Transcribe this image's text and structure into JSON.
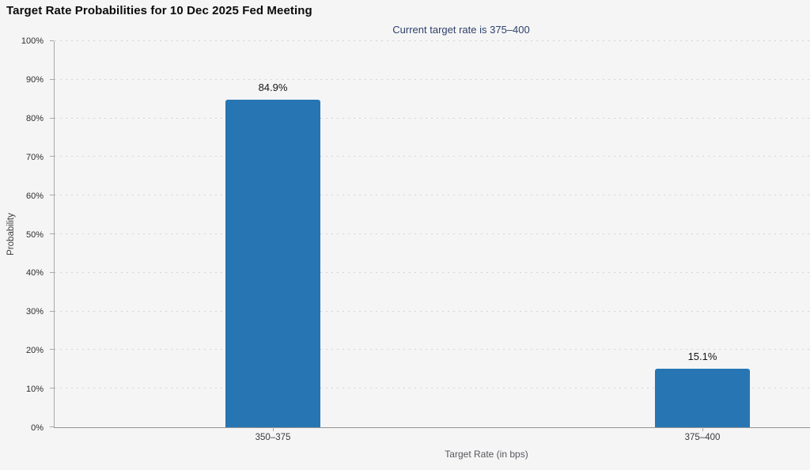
{
  "title": "Target Rate Probabilities for 10 Dec 2025 Fed Meeting",
  "subtitle": "Current target rate is 375–400",
  "chart_data": {
    "type": "bar",
    "title": "Target Rate Probabilities for 10 Dec 2025 Fed Meeting",
    "subtitle": "Current target rate is 375–400",
    "categories": [
      "350–375",
      "375–400"
    ],
    "values": [
      84.9,
      15.1
    ],
    "value_labels": [
      "84.9%",
      "15.1%"
    ],
    "xlabel": "Target Rate (in bps)",
    "ylabel": "Probability",
    "ylim": [
      0,
      100
    ],
    "ytick_step": 10,
    "ytick_labels": [
      "0%",
      "10%",
      "20%",
      "30%",
      "40%",
      "50%",
      "60%",
      "70%",
      "80%",
      "90%",
      "100%"
    ],
    "grid": "horizontal-dotted",
    "legend": "none",
    "colors": {
      "bar": "#2776b3",
      "background": "#f5f5f6",
      "subtitle_text": "#2f4269",
      "axis_line": "#a8a8ab",
      "gridline": "#d4d4d7",
      "tick_label_text": "#2e2e30",
      "value_label_text": "#151517",
      "axis_title_text": "#56575b"
    }
  }
}
